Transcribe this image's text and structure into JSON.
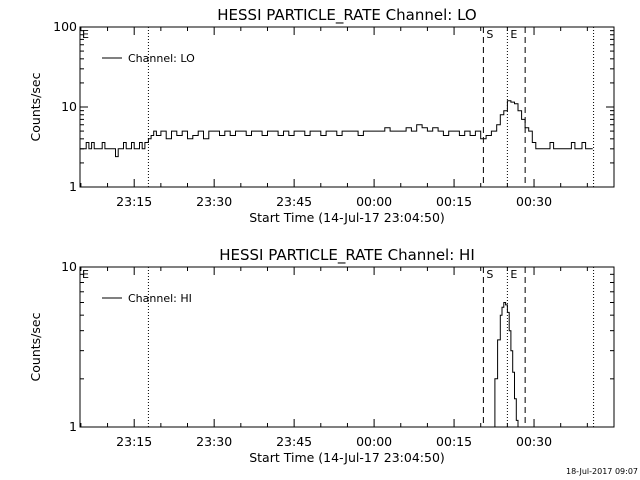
{
  "chart_data": [
    {
      "type": "line",
      "title": "HESSI PARTICLE_RATE Channel: LO",
      "xlabel": "Start Time (14-Jul-17 23:04:50)",
      "ylabel": "Counts/sec",
      "yscale": "log",
      "ylim": [
        1,
        100
      ],
      "xlim": [
        "23:04:50",
        "00:45:00"
      ],
      "x_ticks": [
        "23:15",
        "23:30",
        "23:45",
        "00:00",
        "00:15",
        "00:30"
      ],
      "y_ticks": [
        "1",
        "10",
        "100"
      ],
      "grid": false,
      "legend": {
        "position": "top-left",
        "entries": [
          "Channel: LO"
        ]
      },
      "markers": [
        {
          "time": "23:17:40",
          "style": "dotted",
          "label": "E",
          "label_side": "left"
        },
        {
          "time": "00:20:30",
          "style": "dashed",
          "label": "S"
        },
        {
          "time": "00:25:00",
          "style": "dotted",
          "label": "E"
        },
        {
          "time": "00:28:20",
          "style": "dashed",
          "label": ""
        },
        {
          "time": "00:41:10",
          "style": "dotted",
          "label": ""
        }
      ],
      "series": [
        {
          "name": "Channel: LO",
          "x": [
            "23:04:50",
            "23:05:30",
            "23:06:00",
            "23:06:30",
            "23:07:00",
            "23:07:30",
            "23:08:00",
            "23:08:30",
            "23:09:00",
            "23:09:30",
            "23:10:00",
            "23:10:30",
            "23:11:00",
            "23:11:30",
            "23:12:00",
            "23:12:30",
            "23:13:00",
            "23:13:30",
            "23:14:00",
            "23:14:30",
            "23:15:00",
            "23:15:30",
            "23:16:00",
            "23:16:30",
            "23:17:00",
            "23:17:40",
            "23:18:10",
            "23:18:40",
            "23:19:10",
            "23:20:00",
            "23:21:00",
            "23:22:00",
            "23:23:00",
            "23:24:00",
            "23:25:00",
            "23:26:00",
            "23:27:00",
            "23:28:00",
            "23:29:00",
            "23:30:00",
            "23:31:00",
            "23:32:00",
            "23:33:00",
            "23:34:00",
            "23:35:00",
            "23:36:00",
            "23:37:00",
            "23:38:00",
            "23:39:00",
            "23:40:00",
            "23:41:00",
            "23:42:00",
            "23:43:00",
            "23:44:00",
            "23:45:00",
            "23:46:00",
            "23:47:00",
            "23:48:00",
            "23:49:00",
            "23:50:00",
            "23:51:00",
            "23:52:00",
            "23:53:00",
            "23:54:00",
            "23:55:00",
            "23:56:00",
            "23:57:00",
            "23:58:00",
            "23:59:00",
            "00:00:00",
            "00:01:00",
            "00:02:00",
            "00:03:00",
            "00:04:00",
            "00:05:00",
            "00:06:00",
            "00:07:00",
            "00:08:00",
            "00:09:00",
            "00:10:00",
            "00:11:00",
            "00:12:00",
            "00:13:00",
            "00:14:00",
            "00:15:00",
            "00:16:00",
            "00:17:00",
            "00:18:00",
            "00:19:00",
            "00:20:00",
            "00:21:00",
            "00:22:00",
            "00:23:00",
            "00:23:40",
            "00:24:20",
            "00:25:00",
            "00:25:40",
            "00:26:20",
            "00:27:00",
            "00:27:40",
            "00:28:20",
            "00:29:00",
            "00:29:40",
            "00:30:20",
            "00:31:00",
            "00:31:40",
            "00:32:20",
            "00:33:00",
            "00:33:40",
            "00:34:20",
            "00:35:00",
            "00:35:40",
            "00:36:20",
            "00:37:00",
            "00:37:40",
            "00:38:20",
            "00:39:00",
            "00:39:40",
            "00:40:20",
            "00:41:00"
          ],
          "y": [
            3,
            3,
            3.6,
            3,
            3.6,
            3,
            3,
            3,
            3.6,
            3,
            3,
            3,
            3,
            2.4,
            3,
            3,
            3.6,
            3,
            3,
            3.6,
            3,
            3,
            3.6,
            3,
            3.6,
            4,
            4.4,
            5,
            4.4,
            5,
            4,
            5,
            4.4,
            5,
            4,
            4.4,
            5,
            4,
            5,
            5,
            4.4,
            5,
            4.4,
            5,
            5,
            4.4,
            5,
            5,
            4.4,
            5,
            5,
            4.4,
            5,
            4.4,
            5,
            5,
            4.4,
            5,
            5,
            4.4,
            5,
            5,
            4.4,
            5,
            5,
            5,
            4.4,
            5,
            5,
            5,
            5,
            5.5,
            5,
            5,
            5,
            5.5,
            5,
            6,
            5.5,
            5,
            5.5,
            5,
            4.4,
            5,
            5,
            4.4,
            5,
            4.4,
            5,
            4,
            4.4,
            5,
            6,
            8,
            9,
            12,
            11.5,
            11,
            9,
            7,
            5.5,
            5,
            3.6,
            3,
            3,
            3,
            3,
            3.6,
            3,
            3,
            3,
            3,
            3,
            3.6,
            3,
            3,
            3.6,
            3,
            3,
            3
          ]
        }
      ]
    },
    {
      "type": "line",
      "title": "HESSI PARTICLE_RATE Channel: HI",
      "xlabel": "Start Time (14-Jul-17 23:04:50)",
      "ylabel": "Counts/sec",
      "yscale": "log",
      "ylim": [
        1,
        10
      ],
      "xlim": [
        "23:04:50",
        "00:45:00"
      ],
      "x_ticks": [
        "23:15",
        "23:30",
        "23:45",
        "00:00",
        "00:15",
        "00:30"
      ],
      "y_ticks": [
        "1",
        "10"
      ],
      "grid": false,
      "legend": {
        "position": "top-left",
        "entries": [
          "Channel: HI"
        ]
      },
      "markers": [
        {
          "time": "23:17:40",
          "style": "dotted",
          "label": "E",
          "label_side": "left"
        },
        {
          "time": "00:20:30",
          "style": "dashed",
          "label": "S"
        },
        {
          "time": "00:25:00",
          "style": "dotted",
          "label": "E"
        },
        {
          "time": "00:28:20",
          "style": "dashed",
          "label": ""
        },
        {
          "time": "00:41:10",
          "style": "dotted",
          "label": ""
        }
      ],
      "series": [
        {
          "name": "Channel: HI",
          "x": [
            "00:22:10",
            "00:22:40",
            "00:23:10",
            "00:23:40",
            "00:24:00",
            "00:24:20",
            "00:24:40",
            "00:25:00",
            "00:25:20",
            "00:25:40",
            "00:26:00",
            "00:26:20",
            "00:26:40",
            "00:27:00"
          ],
          "y": [
            1.0,
            2.0,
            3.5,
            5.0,
            5.6,
            6.0,
            5.8,
            5.2,
            4.0,
            3.0,
            2.2,
            1.5,
            1.1,
            1.0
          ]
        }
      ]
    }
  ],
  "footer": {
    "timestamp": "18-Jul-2017 09:07"
  }
}
